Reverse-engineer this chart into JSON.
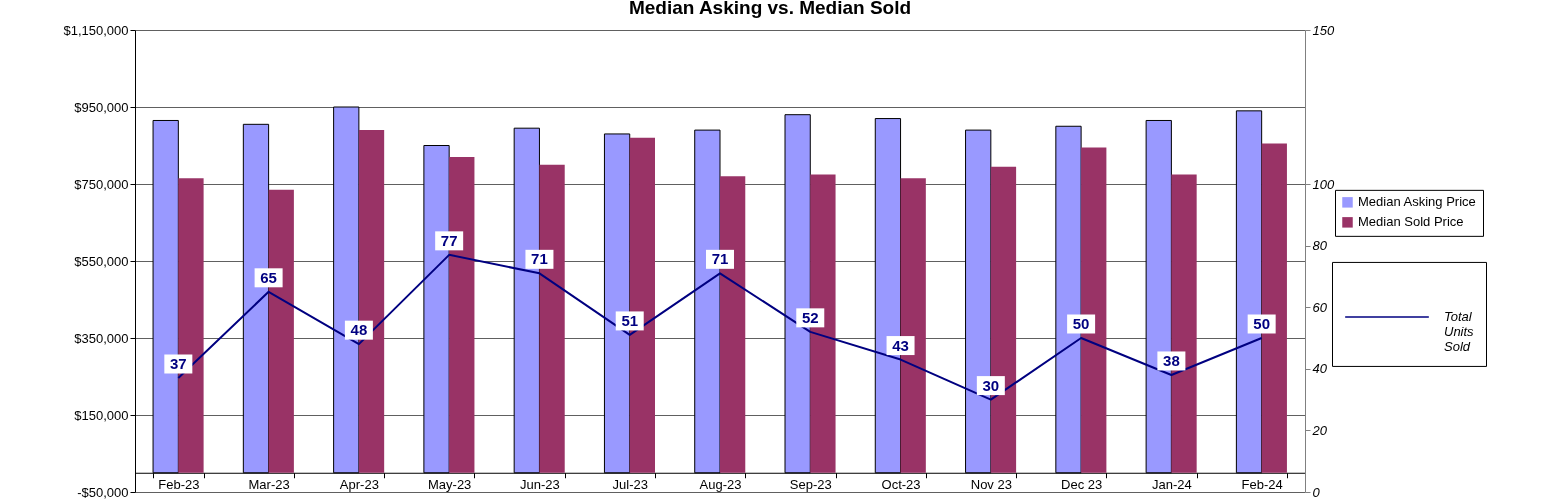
{
  "chart_data": {
    "type": "bar",
    "title": "Median Asking vs. Median Sold",
    "categories": [
      "Feb-23",
      "Mar-23",
      "Apr-23",
      "May-23",
      "Jun-23",
      "Jul-23",
      "Aug-23",
      "Sep-23",
      "Oct-23",
      "Nov 23",
      "Dec 23",
      "Jan-24",
      "Feb-24"
    ],
    "series": [
      {
        "name": "Median Asking Price",
        "color": "#9999ff",
        "values": [
          915000,
          905000,
          950000,
          850000,
          895000,
          880000,
          890000,
          930000,
          920000,
          890000,
          900000,
          915000,
          940000
        ]
      },
      {
        "name": "Median Sold Price",
        "color": "#993366",
        "values": [
          765000,
          735000,
          890000,
          820000,
          800000,
          870000,
          770000,
          775000,
          765000,
          795000,
          845000,
          775000,
          855000
        ]
      },
      {
        "name": "Total Units Sold",
        "type": "line",
        "axis": "y2",
        "color": "#000080",
        "values": [
          37,
          65,
          48,
          77,
          71,
          51,
          71,
          52,
          43,
          30,
          50,
          38,
          50
        ],
        "data_labels": true
      }
    ],
    "ylim": [
      -50000,
      1150000
    ],
    "yticks": [
      {
        "value": -50000,
        "label": "-$50,000"
      },
      {
        "value": 150000,
        "label": "$150,000"
      },
      {
        "value": 350000,
        "label": "$350,000"
      },
      {
        "value": 550000,
        "label": "$550,000"
      },
      {
        "value": 750000,
        "label": "$750,000"
      },
      {
        "value": 950000,
        "label": "$950,000"
      },
      {
        "value": 1150000,
        "label": "$1,150,000"
      }
    ],
    "y2lim": [
      0,
      150
    ],
    "y2ticks": [
      0,
      20,
      40,
      60,
      80,
      100,
      150
    ],
    "grid": "y",
    "legend": "right"
  }
}
